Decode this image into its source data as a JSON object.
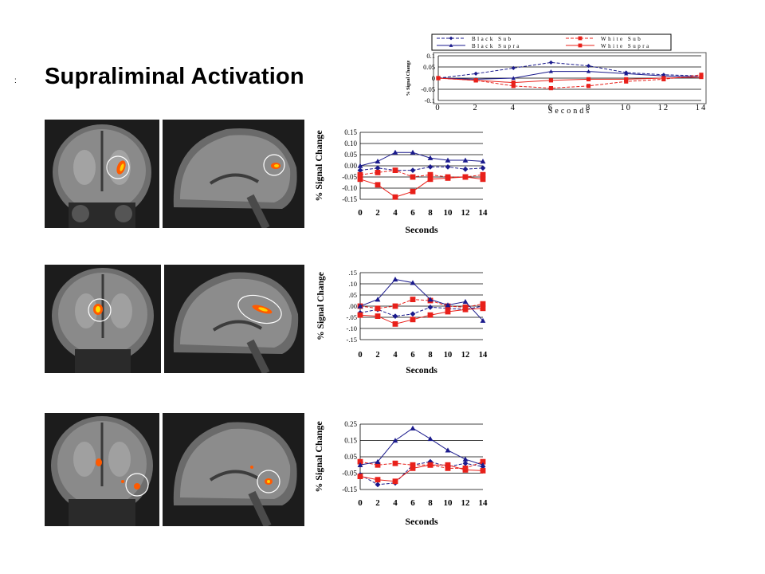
{
  "slide": {
    "stray_mark": ":",
    "title": "Supraliminal Activation"
  },
  "colors": {
    "black_series": "#1a1a8c",
    "white_series": "#e8201a",
    "activation": "#ff5a00"
  },
  "chart_data": [
    {
      "id": "legend-chart",
      "type": "line",
      "x": [
        0,
        2,
        4,
        6,
        8,
        10,
        12,
        14
      ],
      "xticks": [
        "0",
        "2",
        "4",
        "6",
        "8",
        "10",
        "12",
        "14"
      ],
      "yticks": [
        "0.1",
        "0.05",
        "0",
        "-0.05",
        "-0.1"
      ],
      "ylim": [
        -0.1,
        0.1
      ],
      "xlabel": "Seconds",
      "ylabel": "% Signal Change",
      "legend_placement": "top",
      "series": [
        {
          "name": "Black Sub",
          "marker": "diamond",
          "color": "#1a1a8c",
          "dash": true,
          "values": [
            0.0,
            0.02,
            0.045,
            0.07,
            0.055,
            0.025,
            0.015,
            0.01
          ]
        },
        {
          "name": "White Sub",
          "marker": "square",
          "color": "#e8201a",
          "dash": true,
          "values": [
            0.0,
            -0.01,
            -0.035,
            -0.045,
            -0.035,
            -0.015,
            -0.005,
            0.015
          ]
        },
        {
          "name": "Black Supra",
          "marker": "triangle",
          "color": "#1a1a8c",
          "dash": false,
          "values": [
            0.0,
            -0.005,
            0.0,
            0.03,
            0.03,
            0.02,
            0.01,
            0.005
          ]
        },
        {
          "name": "White Supra",
          "marker": "square",
          "color": "#e8201a",
          "dash": false,
          "values": [
            0.0,
            -0.01,
            -0.02,
            -0.01,
            -0.005,
            -0.005,
            0.0,
            0.005
          ]
        }
      ]
    },
    {
      "id": "chart-row-1",
      "type": "line",
      "x": [
        0,
        2,
        4,
        6,
        8,
        10,
        12,
        14
      ],
      "xticks": [
        "0",
        "2",
        "4",
        "6",
        "8",
        "10",
        "12",
        "14"
      ],
      "yticks": [
        "0.15",
        "0.10",
        "0.05",
        "0.00",
        "-0.05",
        "-0.10",
        "-0.15"
      ],
      "ylim": [
        -0.15,
        0.15
      ],
      "xlabel": "Seconds",
      "ylabel": "% Signal Change",
      "series": [
        {
          "name": "Black Sub",
          "marker": "diamond",
          "color": "#1a1a8c",
          "dash": true,
          "values": [
            -0.02,
            -0.01,
            -0.02,
            -0.02,
            -0.005,
            -0.005,
            -0.015,
            -0.01
          ]
        },
        {
          "name": "White Sub",
          "marker": "square",
          "color": "#e8201a",
          "dash": true,
          "values": [
            -0.04,
            -0.03,
            -0.02,
            -0.05,
            -0.04,
            -0.05,
            -0.05,
            -0.04
          ]
        },
        {
          "name": "Black Supra",
          "marker": "triangle",
          "color": "#1a1a8c",
          "dash": false,
          "values": [
            0.0,
            0.02,
            0.06,
            0.06,
            0.035,
            0.025,
            0.025,
            0.02
          ]
        },
        {
          "name": "White Supra",
          "marker": "square",
          "color": "#e8201a",
          "dash": false,
          "values": [
            -0.06,
            -0.085,
            -0.14,
            -0.115,
            -0.06,
            -0.055,
            -0.05,
            -0.06
          ]
        }
      ]
    },
    {
      "id": "chart-row-2",
      "type": "line",
      "x": [
        0,
        2,
        4,
        6,
        8,
        10,
        12,
        14
      ],
      "xticks": [
        "0",
        "2",
        "4",
        "6",
        "8",
        "10",
        "12",
        "14"
      ],
      "yticks": [
        ".15",
        ".10",
        ".05",
        ".00",
        "-.05",
        "-.10",
        "-.15"
      ],
      "ylim": [
        -0.15,
        0.15
      ],
      "xlabel": "Seconds",
      "ylabel": "% Signal Change",
      "series": [
        {
          "name": "Black Sub",
          "marker": "diamond",
          "color": "#1a1a8c",
          "dash": true,
          "values": [
            -0.03,
            -0.015,
            -0.045,
            -0.035,
            -0.005,
            -0.01,
            -0.015,
            0.0
          ]
        },
        {
          "name": "White Sub",
          "marker": "square",
          "color": "#e8201a",
          "dash": true,
          "values": [
            0.0,
            -0.01,
            0.0,
            0.03,
            0.025,
            0.0,
            -0.005,
            0.01
          ]
        },
        {
          "name": "Black Supra",
          "marker": "triangle",
          "color": "#1a1a8c",
          "dash": false,
          "values": [
            0.0,
            0.03,
            0.12,
            0.105,
            0.03,
            0.005,
            0.02,
            -0.065
          ]
        },
        {
          "name": "White Supra",
          "marker": "square",
          "color": "#e8201a",
          "dash": false,
          "values": [
            -0.04,
            -0.045,
            -0.08,
            -0.06,
            -0.04,
            -0.025,
            -0.015,
            -0.01
          ]
        }
      ]
    },
    {
      "id": "chart-row-3",
      "type": "line",
      "x": [
        0,
        2,
        4,
        6,
        8,
        10,
        12,
        14
      ],
      "xticks": [
        "0",
        "2",
        "4",
        "6",
        "8",
        "10",
        "12",
        "14"
      ],
      "yticks": [
        "0.25",
        "0.15",
        "0.05",
        "-0.05",
        "-0.15"
      ],
      "ylim": [
        -0.15,
        0.25
      ],
      "xlabel": "Seconds",
      "ylabel": "% Signal Change",
      "series": [
        {
          "name": "Black Sub",
          "marker": "diamond",
          "color": "#1a1a8c",
          "dash": true,
          "values": [
            -0.06,
            -0.12,
            -0.11,
            0.0,
            0.02,
            -0.01,
            0.01,
            -0.01
          ]
        },
        {
          "name": "White Sub",
          "marker": "square",
          "color": "#e8201a",
          "dash": true,
          "values": [
            0.02,
            0.0,
            0.01,
            0.0,
            0.0,
            -0.02,
            -0.02,
            0.02
          ]
        },
        {
          "name": "Black Supra",
          "marker": "triangle",
          "color": "#1a1a8c",
          "dash": false,
          "values": [
            0.0,
            0.02,
            0.15,
            0.225,
            0.16,
            0.09,
            0.035,
            0.0
          ]
        },
        {
          "name": "White Supra",
          "marker": "square",
          "color": "#e8201a",
          "dash": false,
          "values": [
            -0.07,
            -0.09,
            -0.1,
            -0.02,
            0.0,
            0.0,
            -0.03,
            -0.035
          ]
        }
      ]
    }
  ]
}
